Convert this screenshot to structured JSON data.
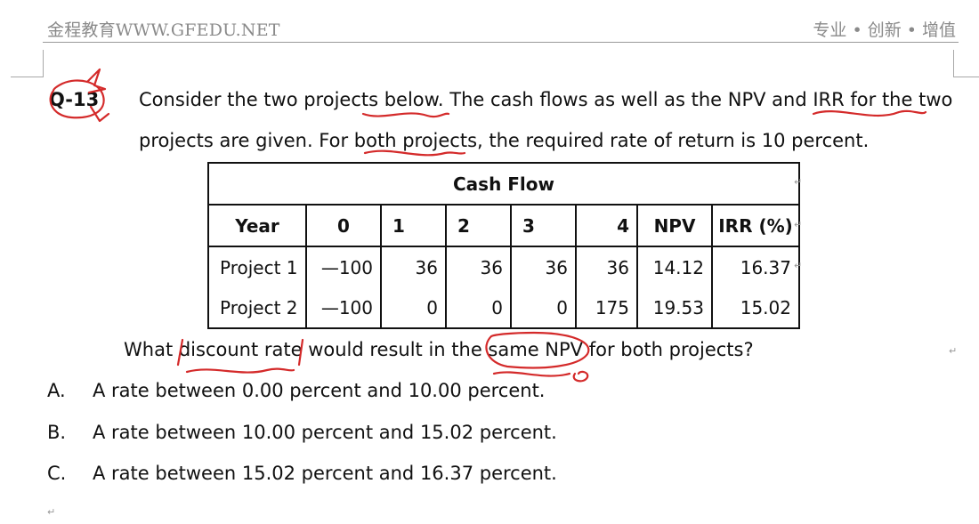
{
  "header": {
    "left": "金程教育WWW.GFEDU.NET",
    "right": "专业 • 创新 • 增值"
  },
  "question": {
    "number": "Q-13",
    "line1": "Consider the two projects below. The cash flows as well as the NPV and IRR for the two",
    "line2": "projects are given. For both projects, the required rate of return is 10 percent.",
    "prompt": "What discount rate would result in the same NPV for both projects?"
  },
  "table": {
    "title": "Cash Flow",
    "columns": [
      "Year",
      "0",
      "1",
      "2",
      "3",
      "4",
      "NPV",
      "IRR (%)"
    ],
    "rows": [
      [
        "Project 1",
        "—100",
        "36",
        "36",
        "36",
        "36",
        "14.12",
        "16.37"
      ],
      [
        "Project 2",
        "—100",
        "0",
        "0",
        "0",
        "175",
        "19.53",
        "15.02"
      ]
    ]
  },
  "options": [
    {
      "letter": "A.",
      "text": "A rate between 0.00 percent and 10.00 percent."
    },
    {
      "letter": "B.",
      "text": "A rate between 10.00 percent and 15.02 percent."
    },
    {
      "letter": "C.",
      "text": "A rate between 15.02 percent and 16.37 percent."
    }
  ],
  "colors": {
    "ink": "#d42a2a",
    "header_text": "#8a8a8a"
  }
}
